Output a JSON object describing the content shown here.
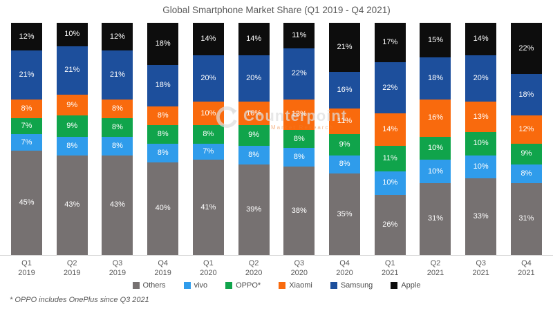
{
  "title": "Global Smartphone Market Share (Q1 2019  - Q4 2021)",
  "footnote": "* OPPO includes OnePlus since Q3 2021",
  "watermark": {
    "logo": "counterpoint-logo",
    "text": "Counterpoint",
    "tagline": "Market Research"
  },
  "colors": {
    "others": "#767171",
    "vivo": "#2f9ceb",
    "oppo": "#10a44b",
    "xiaomi": "#f96a0d",
    "samsung": "#1d4f9c",
    "apple": "#0d0d0d",
    "axis": "#d6d6d6",
    "text": "#595959"
  },
  "chart_data": {
    "type": "bar",
    "stacked": true,
    "title": "Global Smartphone Market Share (Q1 2019  - Q4 2021)",
    "xlabel": "",
    "ylabel": "",
    "ylim": [
      0,
      100
    ],
    "grid": false,
    "legend_position": "bottom",
    "value_suffix": "%",
    "categories": [
      {
        "quarter": "Q1",
        "year": "2019"
      },
      {
        "quarter": "Q2",
        "year": "2019"
      },
      {
        "quarter": "Q3",
        "year": "2019"
      },
      {
        "quarter": "Q4",
        "year": "2019"
      },
      {
        "quarter": "Q1",
        "year": "2020"
      },
      {
        "quarter": "Q2",
        "year": "2020"
      },
      {
        "quarter": "Q3",
        "year": "2020"
      },
      {
        "quarter": "Q4",
        "year": "2020"
      },
      {
        "quarter": "Q1",
        "year": "2021"
      },
      {
        "quarter": "Q2",
        "year": "2021"
      },
      {
        "quarter": "Q3",
        "year": "2021"
      },
      {
        "quarter": "Q4",
        "year": "2021"
      }
    ],
    "series": [
      {
        "name": "Others",
        "color": "#767171",
        "values": [
          45,
          43,
          43,
          40,
          41,
          39,
          38,
          35,
          26,
          31,
          33,
          31
        ]
      },
      {
        "name": "vivo",
        "color": "#2f9ceb",
        "values": [
          7,
          8,
          8,
          8,
          7,
          8,
          8,
          8,
          10,
          10,
          10,
          8
        ]
      },
      {
        "name": "OPPO*",
        "color": "#10a44b",
        "values": [
          7,
          9,
          8,
          8,
          8,
          9,
          8,
          9,
          11,
          10,
          10,
          9
        ]
      },
      {
        "name": "Xiaomi",
        "color": "#f96a0d",
        "values": [
          8,
          9,
          8,
          8,
          10,
          10,
          13,
          11,
          14,
          16,
          13,
          12
        ]
      },
      {
        "name": "Samsung",
        "color": "#1d4f9c",
        "values": [
          21,
          21,
          21,
          18,
          20,
          20,
          22,
          16,
          22,
          18,
          20,
          18
        ]
      },
      {
        "name": "Apple",
        "color": "#0d0d0d",
        "values": [
          12,
          10,
          12,
          18,
          14,
          14,
          11,
          21,
          17,
          15,
          14,
          22
        ]
      }
    ]
  }
}
